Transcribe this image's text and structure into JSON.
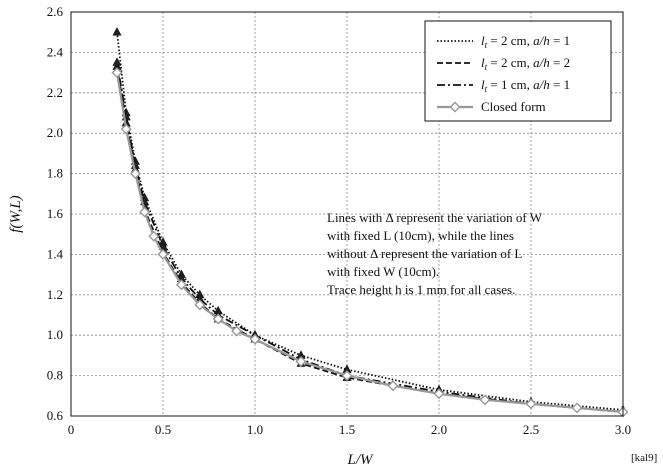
{
  "chart_data": {
    "type": "line",
    "title": "",
    "xlabel": "L/W",
    "ylabel": "f(W,L)",
    "xlim": [
      0,
      3.0
    ],
    "ylim": [
      0.6,
      2.6
    ],
    "x_ticks": [
      "0",
      "0.5",
      "1.0",
      "1.5",
      "2.0",
      "2.5",
      "3.0"
    ],
    "y_ticks": [
      "0.6",
      "0.8",
      "1.0",
      "1.2",
      "1.4",
      "1.6",
      "1.8",
      "2.0",
      "2.2",
      "2.4",
      "2.6"
    ],
    "x_tick_values": [
      0,
      0.5,
      1.0,
      1.5,
      2.0,
      2.5,
      3.0
    ],
    "y_tick_values": [
      0.6,
      0.8,
      1.0,
      1.2,
      1.4,
      1.6,
      1.8,
      2.0,
      2.2,
      2.4,
      2.6
    ],
    "grid": true,
    "legend_position": "top-right",
    "series": [
      {
        "name_prefix": "l",
        "name_sub": "t",
        "name_mid": " = 2 cm, ",
        "name_var": "a/h",
        "name_suffix": " = 1",
        "style": "dotted",
        "color": "#111111",
        "x": [
          0.25,
          0.3,
          0.35,
          0.4,
          0.5,
          0.6,
          0.7,
          0.8,
          1.0,
          1.25,
          1.5,
          2.0,
          2.5,
          3.0
        ],
        "y": [
          2.5,
          2.1,
          1.86,
          1.68,
          1.46,
          1.3,
          1.2,
          1.12,
          1.0,
          0.9,
          0.83,
          0.73,
          0.67,
          0.63
        ],
        "triangle_x": [
          0.25,
          0.3,
          0.35,
          0.4,
          0.5,
          0.6,
          0.7,
          0.8,
          1.0,
          1.25,
          1.5,
          2.0,
          2.5,
          3.0
        ],
        "triangle_y": [
          2.5,
          2.1,
          1.86,
          1.68,
          1.46,
          1.3,
          1.2,
          1.12,
          1.0,
          0.9,
          0.83,
          0.73,
          0.67,
          0.63
        ]
      },
      {
        "name_prefix": "l",
        "name_sub": "t",
        "name_mid": " = 2 cm, ",
        "name_var": "a/h",
        "name_suffix": " = 2",
        "style": "dashed",
        "color": "#111111",
        "x": [
          0.25,
          0.3,
          0.35,
          0.4,
          0.5,
          0.6,
          0.7,
          0.8,
          1.0,
          1.25,
          1.5,
          2.0,
          2.5,
          3.0
        ],
        "y": [
          2.33,
          2.05,
          1.82,
          1.62,
          1.41,
          1.26,
          1.16,
          1.08,
          0.98,
          0.86,
          0.79,
          0.71,
          0.66,
          0.62
        ],
        "triangle_x": [
          0.25,
          0.3,
          0.35,
          0.4,
          0.5,
          0.6,
          0.7,
          0.8,
          1.0,
          1.25,
          1.5
        ],
        "triangle_y": [
          2.33,
          2.05,
          1.82,
          1.62,
          1.41,
          1.26,
          1.16,
          1.08,
          0.98,
          0.86,
          0.79
        ]
      },
      {
        "name_prefix": "l",
        "name_sub": "t",
        "name_mid": " = 1 cm, ",
        "name_var": "a/h",
        "name_suffix": " = 1",
        "style": "dashdot",
        "color": "#111111",
        "x": [
          0.25,
          0.3,
          0.35,
          0.4,
          0.5,
          0.6,
          0.7,
          0.8,
          1.0,
          1.25,
          1.5,
          2.0,
          2.5,
          3.0
        ],
        "y": [
          2.35,
          2.08,
          1.84,
          1.66,
          1.44,
          1.28,
          1.18,
          1.1,
          1.0,
          0.88,
          0.8,
          0.72,
          0.66,
          0.62
        ],
        "triangle_x": [
          0.25,
          0.3,
          0.35,
          0.4,
          0.5,
          0.6,
          0.7,
          0.8,
          1.0,
          1.25
        ],
        "triangle_y": [
          2.35,
          2.08,
          1.84,
          1.66,
          1.44,
          1.28,
          1.18,
          1.1,
          1.0,
          0.88
        ]
      },
      {
        "name": "Closed form",
        "style": "solid",
        "color": "#999999",
        "x": [
          0.25,
          0.3,
          0.35,
          0.4,
          0.45,
          0.5,
          0.6,
          0.7,
          0.8,
          0.9,
          1.0,
          1.25,
          1.5,
          1.75,
          2.0,
          2.25,
          2.5,
          2.75,
          3.0
        ],
        "y": [
          2.3,
          2.02,
          1.8,
          1.61,
          1.49,
          1.4,
          1.25,
          1.15,
          1.08,
          1.02,
          0.98,
          0.87,
          0.8,
          0.75,
          0.71,
          0.68,
          0.66,
          0.64,
          0.62
        ]
      }
    ],
    "annotation_lines": [
      "Lines with Δ represent the variation of W",
      "with fixed L (10cm), while the lines",
      "without Δ represent the variation of L",
      "with fixed W (10cm).",
      "Trace height h is 1 mm for all cases."
    ],
    "source_label": "[kal9]"
  }
}
